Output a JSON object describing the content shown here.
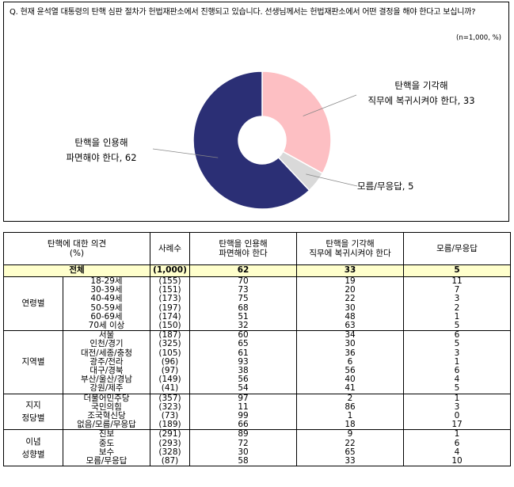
{
  "question": "Q. 현재 윤석열 대통령의 탄핵 심판 절차가 헌법재판소에서 진행되고 있습니다. 선생님께서는 헌법재판소에서 어떤 결정을 해야 한다고 보십니까?",
  "unit_note": "(n=1,000, %)",
  "chart_data": {
    "type": "pie",
    "style": "donut",
    "slices": [
      {
        "label_line1": "탄핵을 인용해",
        "label_line2": "파면해야 한다, 62",
        "value": 62,
        "color": "#2b2f75"
      },
      {
        "label_line1": "탄핵을 기각해",
        "label_line2": "직무에 복귀시켜야 한다, 33",
        "value": 33,
        "color": "#fdbfc3"
      },
      {
        "label_line1": "모름/무응답, 5",
        "label_line2": "",
        "value": 5,
        "color": "#d9d9d9"
      }
    ]
  },
  "table": {
    "headers": {
      "opinion": "탄핵에 대한 의견",
      "opinion_pct": "(%)",
      "n": "사례수",
      "col1_l1": "탄핵을 인용해",
      "col1_l2": "파면해야 한다",
      "col2_l1": "탄핵을 기각해",
      "col2_l2": "직무에 복귀시켜야 한다",
      "col3": "모름/무응답"
    },
    "total": {
      "label": "전체",
      "n": "(1,000)",
      "v": [
        "62",
        "33",
        "5"
      ]
    },
    "groups": [
      {
        "name": "연령별",
        "rows": [
          {
            "label": "18-29세",
            "n": "(155)",
            "v": [
              "70",
              "19",
              "11"
            ]
          },
          {
            "label": "30-39세",
            "n": "(151)",
            "v": [
              "73",
              "20",
              "7"
            ]
          },
          {
            "label": "40-49세",
            "n": "(173)",
            "v": [
              "75",
              "22",
              "3"
            ]
          },
          {
            "label": "50-59세",
            "n": "(197)",
            "v": [
              "68",
              "30",
              "2"
            ]
          },
          {
            "label": "60-69세",
            "n": "(174)",
            "v": [
              "51",
              "48",
              "1"
            ]
          },
          {
            "label": "70세 이상",
            "n": "(150)",
            "v": [
              "32",
              "63",
              "5"
            ]
          }
        ]
      },
      {
        "name": "지역별",
        "rows": [
          {
            "label": "서울",
            "n": "(187)",
            "v": [
              "60",
              "34",
              "6"
            ]
          },
          {
            "label": "인천/경기",
            "n": "(325)",
            "v": [
              "65",
              "30",
              "5"
            ]
          },
          {
            "label": "대전/세종/충청",
            "n": "(105)",
            "v": [
              "61",
              "36",
              "3"
            ]
          },
          {
            "label": "광주/전라",
            "n": "(96)",
            "v": [
              "93",
              "6",
              "1"
            ]
          },
          {
            "label": "대구/경북",
            "n": "(97)",
            "v": [
              "38",
              "56",
              "6"
            ]
          },
          {
            "label": "부산/울산/경남",
            "n": "(149)",
            "v": [
              "56",
              "40",
              "4"
            ]
          },
          {
            "label": "강원/제주",
            "n": "(41)",
            "v": [
              "54",
              "41",
              "5"
            ]
          }
        ]
      },
      {
        "name": "지지 정당별",
        "name_l1": "지지",
        "name_l2": "정당별",
        "rows": [
          {
            "label": "더불어민주당",
            "n": "(357)",
            "v": [
              "97",
              "2",
              "1"
            ]
          },
          {
            "label": "국민의힘",
            "n": "(323)",
            "v": [
              "11",
              "86",
              "3"
            ]
          },
          {
            "label": "조국혁신당",
            "n": "(73)",
            "v": [
              "99",
              "1",
              "0"
            ]
          },
          {
            "label": "없음/모름/무응답",
            "n": "(189)",
            "v": [
              "66",
              "18",
              "17"
            ]
          }
        ]
      },
      {
        "name": "이념 성향별",
        "name_l1": "이념",
        "name_l2": "성향별",
        "rows": [
          {
            "label": "진보",
            "n": "(291)",
            "v": [
              "89",
              "9",
              "1"
            ]
          },
          {
            "label": "중도",
            "n": "(293)",
            "v": [
              "72",
              "22",
              "6"
            ]
          },
          {
            "label": "보수",
            "n": "(328)",
            "v": [
              "30",
              "65",
              "4"
            ]
          },
          {
            "label": "모름/무응답",
            "n": "(87)",
            "v": [
              "58",
              "33",
              "10"
            ]
          }
        ]
      }
    ]
  }
}
